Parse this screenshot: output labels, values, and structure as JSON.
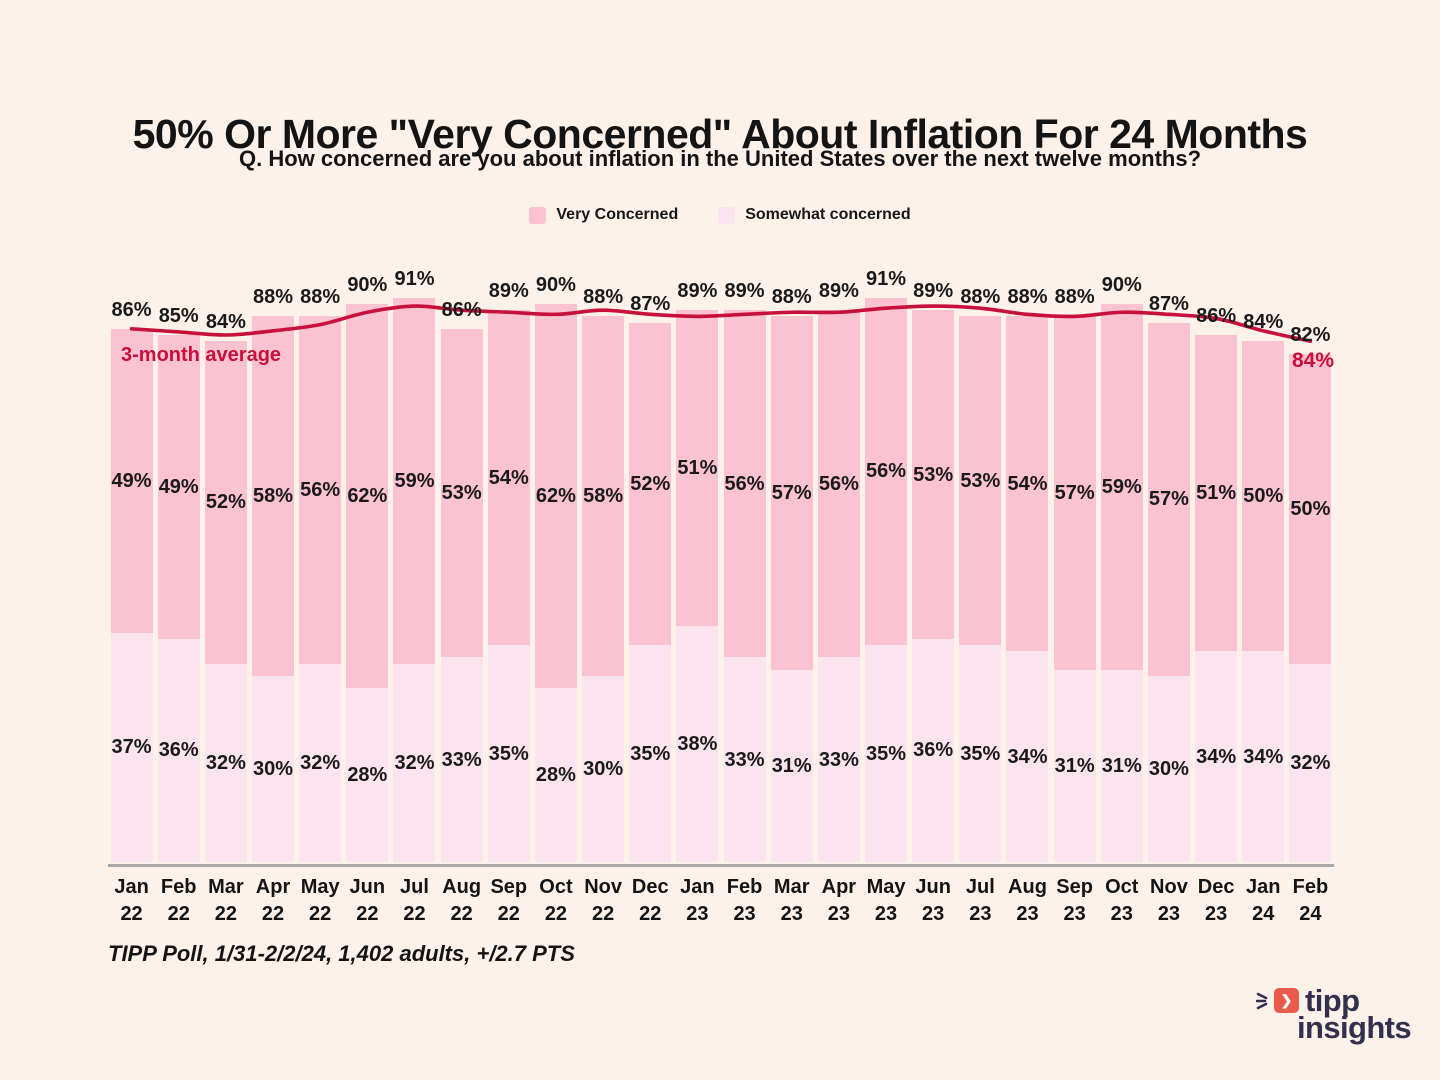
{
  "header": {
    "title": "50% Or More \"Very Concerned\" About Inflation For 24 Months",
    "subtitle": "Q. How concerned are you about inflation in the United States over the next twelve months?"
  },
  "legend": {
    "items": [
      {
        "label": "Very Concerned",
        "color": "#fbc3d2"
      },
      {
        "label": "Somewhat concerned",
        "color": "#fce4ee"
      }
    ]
  },
  "annotations": {
    "line_label": "3-month average",
    "line_end_label": "84%"
  },
  "footer": {
    "text": "TIPP Poll, 1/31-2/2/24, 1,402 adults, +/2.7 PTS"
  },
  "logo": {
    "line1": "tipp",
    "line2": "insights"
  },
  "colors": {
    "background": "#fdf2e9",
    "very_concerned": "#fbc3d2",
    "somewhat_concerned": "#fce4ee",
    "average_line": "#c8103c",
    "text": "#171717",
    "axis": "#a9a9a9",
    "logo_navy": "#32304e",
    "logo_red": "#e95c4b"
  },
  "chart_data": {
    "type": "bar",
    "stacked": true,
    "title": "50% Or More \"Very Concerned\" About Inflation For 24 Months",
    "value_suffix": "%",
    "ylim": [
      0,
      100
    ],
    "categories_month": [
      "Jan",
      "Feb",
      "Mar",
      "Apr",
      "May",
      "Jun",
      "Jul",
      "Aug",
      "Sep",
      "Oct",
      "Nov",
      "Dec",
      "Jan",
      "Feb",
      "Mar",
      "Apr",
      "May",
      "Jun",
      "Jul",
      "Aug",
      "Sep",
      "Oct",
      "Nov",
      "Dec",
      "Jan",
      "Feb"
    ],
    "categories_year": [
      "22",
      "22",
      "22",
      "22",
      "22",
      "22",
      "22",
      "22",
      "22",
      "22",
      "22",
      "22",
      "23",
      "23",
      "23",
      "23",
      "23",
      "23",
      "23",
      "23",
      "23",
      "23",
      "23",
      "23",
      "24",
      "24"
    ],
    "series": [
      {
        "name": "Very Concerned",
        "color": "#fbc3d2",
        "values": [
          49,
          49,
          52,
          58,
          56,
          62,
          59,
          53,
          54,
          62,
          58,
          52,
          51,
          56,
          57,
          56,
          56,
          53,
          53,
          54,
          57,
          59,
          57,
          51,
          50,
          50
        ]
      },
      {
        "name": "Somewhat concerned",
        "color": "#fce4ee",
        "values": [
          37,
          36,
          32,
          30,
          32,
          28,
          32,
          33,
          35,
          28,
          30,
          35,
          38,
          33,
          31,
          33,
          35,
          36,
          35,
          34,
          31,
          31,
          30,
          34,
          34,
          32
        ]
      }
    ],
    "totals": [
      86,
      85,
      84,
      88,
      88,
      90,
      91,
      86,
      89,
      90,
      88,
      87,
      89,
      89,
      88,
      89,
      91,
      89,
      88,
      88,
      88,
      90,
      87,
      86,
      84,
      82
    ],
    "moving_average": {
      "name": "3-month average",
      "color": "#c8103c",
      "values": [
        86,
        85.5,
        85,
        85.67,
        86.67,
        88.67,
        89.67,
        89,
        88.67,
        88.33,
        89,
        88.33,
        88,
        88.33,
        88.67,
        88.67,
        89.33,
        89.67,
        89.33,
        88.33,
        88,
        88.67,
        88.33,
        87.67,
        85.67,
        84
      ]
    }
  }
}
